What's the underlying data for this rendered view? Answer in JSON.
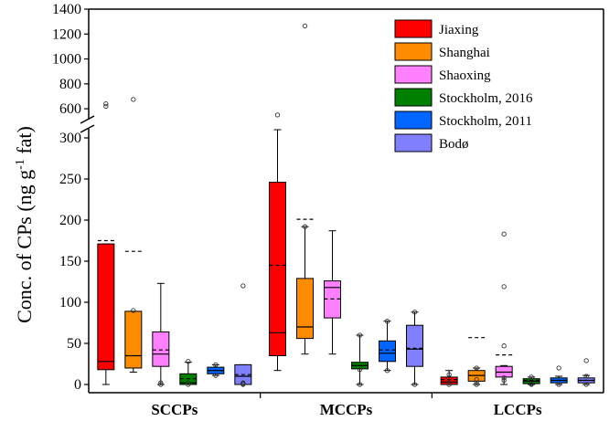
{
  "chart_data": {
    "type": "box",
    "title": "",
    "xlabel": "",
    "ylabel_main": "Conc. of CPs (ng g",
    "ylabel_sup": "-1",
    "ylabel_tail": " fat)",
    "axis_break": {
      "lower_max": 310,
      "upper_min": 520
    },
    "ylim_lower": [
      -10,
      310
    ],
    "ylim_upper": [
      520,
      1400
    ],
    "yticks_lower": [
      0,
      50,
      100,
      150,
      200,
      250,
      300
    ],
    "yticks_upper": [
      600,
      800,
      1000,
      1200,
      1400
    ],
    "ytick_labels_lower": [
      "0",
      "50",
      "100",
      "150",
      "200",
      "250",
      "300"
    ],
    "ytick_labels_upper": [
      "600",
      "800",
      "1000",
      "1200",
      "1400"
    ],
    "categories": [
      "SCCPs",
      "MCCPs",
      "LCCPs"
    ],
    "series": [
      {
        "name": "Jiaxing",
        "color": "#ff0000",
        "boxes": [
          {
            "q1": 18,
            "median": 28,
            "q3": 171,
            "mean": 175,
            "wlow": 0,
            "whigh": 171,
            "outliers": [
              640,
              620
            ]
          },
          {
            "q1": 35,
            "median": 63,
            "q3": 246,
            "mean": 145,
            "wlow": 17,
            "whigh": 310,
            "outliers": [
              550
            ]
          },
          {
            "q1": 0,
            "median": 3,
            "q3": 9,
            "mean": 6,
            "wlow": 0,
            "whigh": 17,
            "outliers": [
              0,
              2,
              8,
              12
            ]
          }
        ]
      },
      {
        "name": "Shanghai",
        "color": "#ff8c00",
        "boxes": [
          {
            "q1": 20,
            "median": 35,
            "q3": 89,
            "mean": 162,
            "wlow": 15,
            "whigh": 89,
            "outliers": [
              675,
              90
            ]
          },
          {
            "q1": 56,
            "median": 70,
            "q3": 129,
            "mean": 201,
            "wlow": 37,
            "whigh": 192,
            "outliers": [
              1265,
              192
            ]
          },
          {
            "q1": 4,
            "median": 11,
            "q3": 17,
            "mean": 57,
            "wlow": 0,
            "whigh": 20,
            "outliers": [
              0,
              2,
              6,
              20
            ]
          }
        ]
      },
      {
        "name": "Shaoxing",
        "color": "#ff80ff",
        "boxes": [
          {
            "q1": 22,
            "median": 37,
            "q3": 64,
            "mean": 42,
            "wlow": 0,
            "whigh": 123,
            "outliers": [
              0,
              2
            ]
          },
          {
            "q1": 81,
            "median": 118,
            "q3": 126,
            "mean": 104,
            "wlow": 37,
            "whigh": 187,
            "outliers": []
          },
          {
            "q1": 9,
            "median": 15,
            "q3": 22,
            "mean": 36,
            "wlow": 0,
            "whigh": 23,
            "outliers": [
              183,
              119,
              47,
              5,
              8
            ]
          }
        ]
      },
      {
        "name": "Stockholm, 2016",
        "color": "#008000",
        "boxes": [
          {
            "q1": 0,
            "median": 2,
            "q3": 13,
            "mean": 7,
            "wlow": 0,
            "whigh": 27,
            "outliers": [
              0,
              2,
              28
            ]
          },
          {
            "q1": 19,
            "median": 23,
            "q3": 27,
            "mean": 23,
            "wlow": 0,
            "whigh": 60,
            "outliers": [
              0,
              18,
              60
            ]
          },
          {
            "q1": 1,
            "median": 4,
            "q3": 7,
            "mean": 5,
            "wlow": 0,
            "whigh": 9,
            "outliers": [
              0,
              1,
              9
            ]
          }
        ]
      },
      {
        "name": "Stockholm, 2011",
        "color": "#0066ff",
        "boxes": [
          {
            "q1": 13,
            "median": 17,
            "q3": 21,
            "mean": 17,
            "wlow": 11,
            "whigh": 24,
            "outliers": [
              11,
              24
            ]
          },
          {
            "q1": 28,
            "median": 38,
            "q3": 53,
            "mean": 42,
            "wlow": 17,
            "whigh": 77,
            "outliers": [
              17,
              77
            ]
          },
          {
            "q1": 2,
            "median": 5,
            "q3": 8,
            "mean": 5,
            "wlow": 0,
            "whigh": 10,
            "outliers": [
              0,
              20
            ]
          }
        ]
      },
      {
        "name": "Bodø",
        "color": "#8080ff",
        "boxes": [
          {
            "q1": 0,
            "median": 10,
            "q3": 24,
            "mean": 12,
            "wlow": 0,
            "whigh": 24,
            "outliers": [
              0,
              1,
              2,
              120
            ]
          },
          {
            "q1": 22,
            "median": 43,
            "q3": 72,
            "mean": 44,
            "wlow": 0,
            "whigh": 88,
            "outliers": [
              0,
              88
            ]
          },
          {
            "q1": 2,
            "median": 5,
            "q3": 8,
            "mean": 5,
            "wlow": 0,
            "whigh": 11,
            "outliers": [
              0,
              10,
              29
            ]
          }
        ]
      }
    ],
    "legend_position": "top-right"
  }
}
